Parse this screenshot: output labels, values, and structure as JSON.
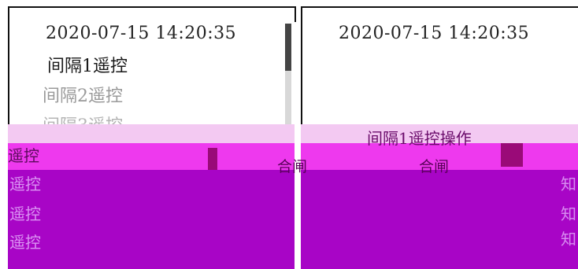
{
  "left_panel": {
    "timestamp": "2020-07-15 14:20:35",
    "menu": [
      {
        "label": "间隔1遥控"
      },
      {
        "label": "间隔2遥控"
      },
      {
        "label": "间隔3遥控"
      }
    ]
  },
  "right_panel": {
    "timestamp": "2020-07-15 14:20:35"
  },
  "overlay": {
    "left_item_label": "遥控",
    "operation_title": "间隔1遥控操作",
    "close_left": "合闸",
    "close_right": "合闸",
    "ghost_rows": [
      "遥控",
      "遥控",
      "遥控"
    ],
    "side_glyphs": [
      "知",
      "知",
      "知"
    ]
  },
  "colors": {
    "band_light": "#f3c9f2",
    "band_pink": "#ee39ee",
    "band_purple": "#a805c6",
    "dark_block": "#9a0a78"
  }
}
